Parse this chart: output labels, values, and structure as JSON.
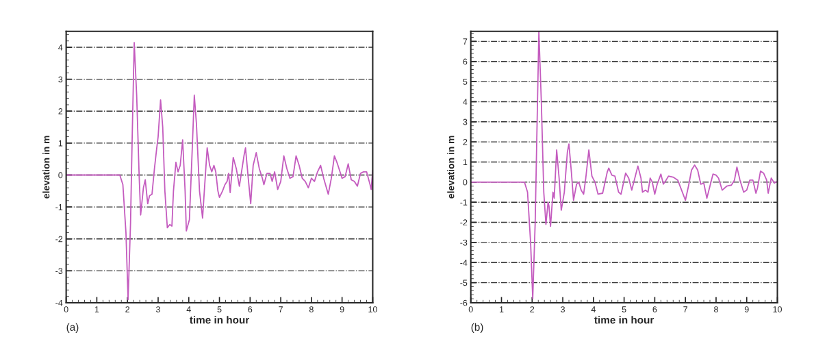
{
  "chart_data": [
    {
      "type": "line",
      "xlabel": "time in hour",
      "ylabel": "elevation in m",
      "annotations": [
        "(a)"
      ],
      "grid": "y",
      "xlim": [
        0,
        10
      ],
      "ylim": [
        -4,
        4.5
      ],
      "xticks": [
        0,
        1,
        2,
        3,
        4,
        5,
        6,
        7,
        8,
        9,
        10
      ],
      "yticks": [
        -4,
        -3,
        -2,
        -1,
        0,
        1,
        2,
        3,
        4
      ],
      "series": [
        {
          "color": "#c45cbf",
          "x": [
            0,
            1.75,
            1.85,
            1.95,
            2.02,
            2.1,
            2.15,
            2.22,
            2.3,
            2.38,
            2.43,
            2.52,
            2.58,
            2.66,
            2.72,
            2.8,
            2.88,
            2.95,
            3.0,
            3.08,
            3.15,
            3.22,
            3.3,
            3.38,
            3.45,
            3.5,
            3.58,
            3.65,
            3.72,
            3.8,
            3.88,
            3.92,
            4.02,
            4.1,
            4.18,
            4.25,
            4.35,
            4.45,
            4.5,
            4.6,
            4.68,
            4.75,
            4.82,
            4.88,
            4.95,
            5.0,
            5.1,
            5.18,
            5.25,
            5.3,
            5.35,
            5.45,
            5.55,
            5.65,
            5.8,
            5.85,
            5.95,
            6.02,
            6.1,
            6.2,
            6.3,
            6.4,
            6.45,
            6.55,
            6.65,
            6.72,
            6.8,
            6.9,
            7.0,
            7.1,
            7.2,
            7.3,
            7.4,
            7.5,
            7.6,
            7.7,
            7.8,
            7.9,
            8.0,
            8.1,
            8.2,
            8.3,
            8.4,
            8.55,
            8.65,
            8.75,
            8.85,
            9.0,
            9.1,
            9.2,
            9.3,
            9.4,
            9.5,
            9.6,
            9.7,
            9.8,
            9.9,
            9.95,
            10.0
          ],
          "values": [
            0,
            0,
            -0.3,
            -1.8,
            -3.9,
            -1.5,
            1,
            4.15,
            2.5,
            0,
            -1.25,
            -0.4,
            -0.15,
            -0.9,
            -0.65,
            -0.6,
            0.2,
            0.8,
            1.2,
            2.35,
            1.5,
            -0.5,
            -1.65,
            -1.55,
            -1.6,
            -0.5,
            0.4,
            0.1,
            0.3,
            1.1,
            -0.5,
            -1.75,
            -1.4,
            0.5,
            2.5,
            1.6,
            -0.5,
            -1.35,
            -0.6,
            0.85,
            0.3,
            0.1,
            0.3,
            0.1,
            -0.5,
            -0.7,
            -0.5,
            -0.3,
            -0.2,
            0.05,
            -0.55,
            0.55,
            0.2,
            -0.35,
            0.6,
            0.85,
            -0.2,
            -0.9,
            0.3,
            0.7,
            0.2,
            -0.1,
            -0.3,
            0.05,
            0.05,
            -0.2,
            0.1,
            -0.45,
            -0.2,
            0.6,
            0.2,
            -0.1,
            -0.05,
            0.6,
            0.3,
            -0.1,
            -0.2,
            -0.4,
            -0.1,
            -0.2,
            0.1,
            0.3,
            -0.1,
            -0.6,
            -0.1,
            0.6,
            0.35,
            -0.1,
            -0.05,
            0.35,
            -0.15,
            -0.2,
            -0.35,
            0.05,
            0.1,
            0.1,
            -0.25,
            -0.45,
            0.15
          ]
        }
      ]
    },
    {
      "type": "line",
      "xlabel": "time in hour",
      "ylabel": "elevation in m",
      "annotations": [
        "(b)"
      ],
      "grid": "y",
      "xlim": [
        0,
        10
      ],
      "ylim": [
        -6,
        7.5
      ],
      "xticks": [
        0,
        1,
        2,
        3,
        4,
        5,
        6,
        7,
        8,
        9,
        10
      ],
      "yticks": [
        -6,
        -5,
        -4,
        -3,
        -2,
        -1,
        0,
        1,
        2,
        3,
        4,
        5,
        6,
        7
      ],
      "series": [
        {
          "color": "#c45cbf",
          "x": [
            0,
            1.75,
            1.85,
            1.95,
            2.02,
            2.1,
            2.15,
            2.22,
            2.3,
            2.38,
            2.45,
            2.52,
            2.55,
            2.6,
            2.68,
            2.72,
            2.8,
            2.88,
            2.95,
            3.05,
            3.15,
            3.2,
            3.28,
            3.35,
            3.45,
            3.52,
            3.6,
            3.68,
            3.75,
            3.85,
            3.95,
            4.05,
            4.15,
            4.3,
            4.45,
            4.5,
            4.6,
            4.7,
            4.82,
            4.9,
            5.0,
            5.05,
            5.15,
            5.25,
            5.35,
            5.45,
            5.55,
            5.6,
            5.7,
            5.78,
            5.85,
            5.92,
            6.0,
            6.08,
            6.2,
            6.28,
            6.35,
            6.45,
            6.6,
            6.75,
            6.85,
            7.0,
            7.1,
            7.2,
            7.3,
            7.4,
            7.5,
            7.6,
            7.7,
            7.8,
            7.9,
            8.0,
            8.08,
            8.2,
            8.35,
            8.5,
            8.6,
            8.68,
            8.78,
            8.9,
            9.0,
            9.1,
            9.2,
            9.3,
            9.35,
            9.45,
            9.55,
            9.65,
            9.7,
            9.8,
            9.9,
            10.0
          ],
          "values": [
            0,
            0,
            -0.5,
            -3,
            -5.8,
            -2,
            2,
            7.5,
            4,
            -0.5,
            -2.1,
            -1,
            -1.2,
            -2.2,
            -0.5,
            -0.8,
            1.6,
            0.2,
            -1.4,
            -0.5,
            1.5,
            1.9,
            0.5,
            -0.9,
            -0.1,
            0,
            -0.4,
            -0.6,
            0.2,
            1.6,
            0.3,
            0,
            -0.6,
            -0.55,
            0.5,
            0.7,
            0.35,
            0.3,
            -0.5,
            -0.6,
            0.1,
            0.45,
            0.2,
            -0.4,
            0.2,
            0.8,
            0.2,
            -0.5,
            -0.4,
            -0.5,
            0.2,
            0,
            -0.6,
            -0.1,
            0.4,
            -0.1,
            0.05,
            0.3,
            0.25,
            0.1,
            -0.3,
            -0.9,
            -0.2,
            0.6,
            0.85,
            0.6,
            -0.1,
            -0.05,
            -0.8,
            -0.2,
            0.4,
            0.35,
            0.2,
            -0.4,
            -0.2,
            -0.15,
            0.1,
            0.75,
            0.1,
            -0.5,
            -0.4,
            0.1,
            0.1,
            -0.55,
            -0.3,
            0.55,
            0.45,
            0.1,
            -0.55,
            0.2,
            -0.05,
            0.05
          ]
        }
      ]
    }
  ]
}
